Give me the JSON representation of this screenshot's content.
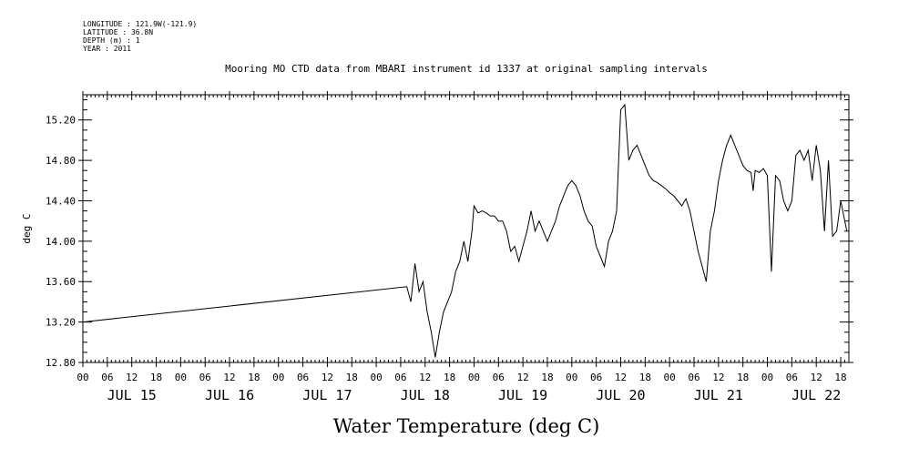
{
  "metadata": [
    "LONGITUDE : 121.9W(-121.9)",
    "LATITUDE : 36.8N",
    "DEPTH (m) : 1",
    "YEAR : 2011"
  ],
  "chart_data": {
    "type": "line",
    "title": "Mooring MO CTD data from MBARI instrument id 1337 at original sampling intervals",
    "xlabel": "Water Temperature (deg C)",
    "ylabel": "deg C",
    "ylim": [
      12.8,
      15.45
    ],
    "yticks": [
      "12.80",
      "13.20",
      "13.60",
      "14.00",
      "14.40",
      "14.80",
      "15.20"
    ],
    "x_unit": "hours since JUL 15 00:00",
    "xlim": [
      0,
      188
    ],
    "hour_tick_labels": [
      "00",
      "06",
      "12",
      "18",
      "00",
      "06",
      "12",
      "18",
      "00",
      "06",
      "12",
      "18",
      "00",
      "06",
      "12",
      "18",
      "00",
      "06",
      "12",
      "18",
      "00",
      "06",
      "12",
      "18",
      "00",
      "06",
      "12",
      "18",
      "00",
      "06",
      "12",
      "18"
    ],
    "day_labels": [
      "JUL 15",
      "JUL 16",
      "JUL 17",
      "JUL 18",
      "JUL 19",
      "JUL 20",
      "JUL 21",
      "JUL 22"
    ],
    "series": [
      {
        "x": [
          0,
          79.5,
          80.5,
          81.5,
          82.5,
          83.5,
          84.5,
          85.5,
          86.5,
          87.5,
          88.5,
          89.5,
          90.5,
          91.5,
          92.5,
          93.5,
          94.5,
          95.5,
          96.0,
          97.0,
          98.0,
          99.0,
          100.0,
          101.0,
          102.0,
          103.0,
          104.0,
          105.0,
          106.0,
          107.0,
          108.0,
          109.0,
          110.0,
          111.0,
          112.0,
          113.0,
          114.0,
          115.0,
          116.0,
          117.0,
          118.0,
          119.0,
          120.0,
          121.0,
          122.0,
          123.0,
          124.0,
          125.0,
          126.0,
          127.0,
          128.0,
          129.0,
          130.0,
          131.0,
          132.0,
          133.0,
          134.0,
          135.0,
          136.0,
          137.0,
          138.0,
          139.0,
          140.0,
          141.0,
          142.0,
          143.0,
          144.0,
          145.0,
          146.0,
          147.0,
          148.0,
          149.0,
          150.0,
          151.0,
          152.0,
          153.0,
          154.0,
          155.0,
          156.0,
          157.0,
          158.0,
          159.0,
          160.0,
          161.0,
          162.0,
          163.0,
          164.0,
          164.5,
          165.0,
          166.0,
          167.0,
          168.0,
          169.0,
          170.0,
          171.0,
          172.0,
          173.0,
          174.0,
          175.0,
          176.0,
          177.0,
          178.0,
          179.0,
          180.0,
          181.0,
          182.0,
          183.0,
          184.0,
          185.0,
          186.0,
          187.0,
          187.5
        ],
        "y": [
          13.2,
          13.55,
          13.4,
          13.78,
          13.5,
          13.6,
          13.3,
          13.1,
          12.85,
          13.1,
          13.3,
          13.4,
          13.5,
          13.7,
          13.8,
          14.0,
          13.8,
          14.1,
          14.35,
          14.28,
          14.3,
          14.28,
          14.25,
          14.25,
          14.2,
          14.2,
          14.1,
          13.9,
          13.95,
          13.8,
          13.95,
          14.1,
          14.3,
          14.1,
          14.2,
          14.1,
          14.0,
          14.1,
          14.2,
          14.35,
          14.45,
          14.55,
          14.6,
          14.55,
          14.45,
          14.3,
          14.2,
          14.15,
          13.95,
          13.85,
          13.75,
          14.0,
          14.1,
          14.3,
          15.3,
          15.35,
          14.8,
          14.9,
          14.95,
          14.85,
          14.75,
          14.65,
          14.6,
          14.58,
          14.55,
          14.52,
          14.48,
          14.45,
          14.4,
          14.35,
          14.42,
          14.3,
          14.1,
          13.9,
          13.75,
          13.6,
          14.1,
          14.3,
          14.6,
          14.8,
          14.95,
          15.05,
          14.95,
          14.85,
          14.75,
          14.7,
          14.68,
          14.5,
          14.7,
          14.68,
          14.72,
          14.65,
          13.7,
          14.65,
          14.6,
          14.4,
          14.3,
          14.4,
          14.85,
          14.9,
          14.8,
          14.9,
          14.6,
          14.95,
          14.7,
          14.1,
          14.8,
          14.05,
          14.1,
          14.4,
          14.2,
          14.1
        ]
      }
    ]
  }
}
